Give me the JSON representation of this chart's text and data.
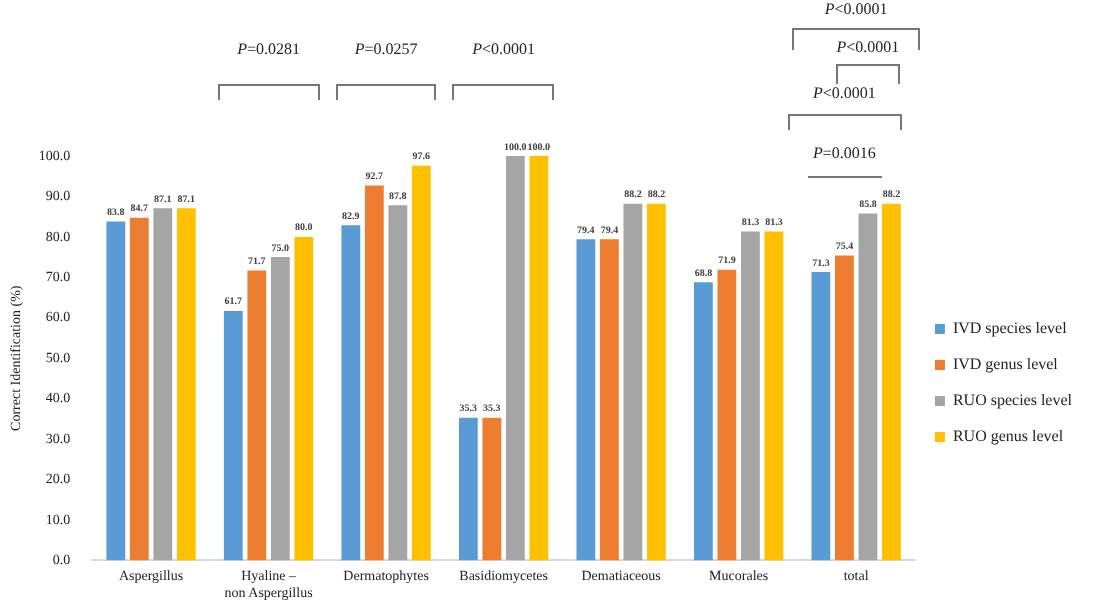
{
  "chart_data": {
    "type": "bar",
    "ylabel": "Correct Identification (%)",
    "categories": [
      "Aspergillus",
      "Hyaline – non Aspergillus",
      "Dermatophytes",
      "Basidiomycetes",
      "Dematiaceous",
      "Mucorales",
      "total"
    ],
    "series": [
      {
        "name": "IVD species level",
        "color": "#5b9bd5",
        "values": [
          83.8,
          61.7,
          82.9,
          35.3,
          79.4,
          68.8,
          71.3
        ],
        "value_labels": [
          "83.8",
          "61.7",
          "82.9",
          "35.3",
          "79.4",
          "68.8",
          "71.3"
        ]
      },
      {
        "name": "IVD genus level",
        "color": "#ed7d31",
        "values": [
          84.7,
          71.7,
          92.7,
          35.3,
          79.4,
          71.9,
          75.4
        ],
        "value_labels": [
          "84.7",
          "71.7",
          "92.7",
          "35.3",
          "79.4",
          "71.9",
          "75.4"
        ]
      },
      {
        "name": "RUO species level",
        "color": "#a5a5a5",
        "values": [
          87.1,
          75.0,
          87.8,
          100.0,
          88.2,
          81.3,
          85.8
        ],
        "value_labels": [
          "87.1",
          "75.0",
          "87.8",
          "100.0",
          "88.2",
          "81.3",
          "85.8"
        ]
      },
      {
        "name": "RUO genus level",
        "color": "#ffc000",
        "values": [
          87.1,
          80.0,
          97.6,
          100.0,
          88.2,
          81.3,
          88.2
        ],
        "value_labels": [
          "87.1",
          "80.0",
          "97.6",
          "100.0",
          "88.2",
          "81.3",
          "88.2"
        ]
      }
    ],
    "ylim": [
      0,
      100
    ],
    "yticks": [
      {
        "value": 0,
        "label": "0.0"
      },
      {
        "value": 10,
        "label": "10.0"
      },
      {
        "value": 20,
        "label": "20.0"
      },
      {
        "value": 30,
        "label": "30.0"
      },
      {
        "value": 40,
        "label": "40.0"
      },
      {
        "value": 50,
        "label": "50.0"
      },
      {
        "value": 60,
        "label": "60.0"
      },
      {
        "value": 70,
        "label": "70.0"
      },
      {
        "value": 80,
        "label": "80.0"
      },
      {
        "value": 90,
        "label": "90.0"
      },
      {
        "value": 100,
        "label": "100.0"
      }
    ],
    "grid": false,
    "legend": "right",
    "annotations": [
      "P=0.0281",
      "P=0.0257",
      "P<0.0001",
      "P<0.0001",
      "P<0.0001",
      "P<0.0001",
      "P=0.0016"
    ]
  }
}
